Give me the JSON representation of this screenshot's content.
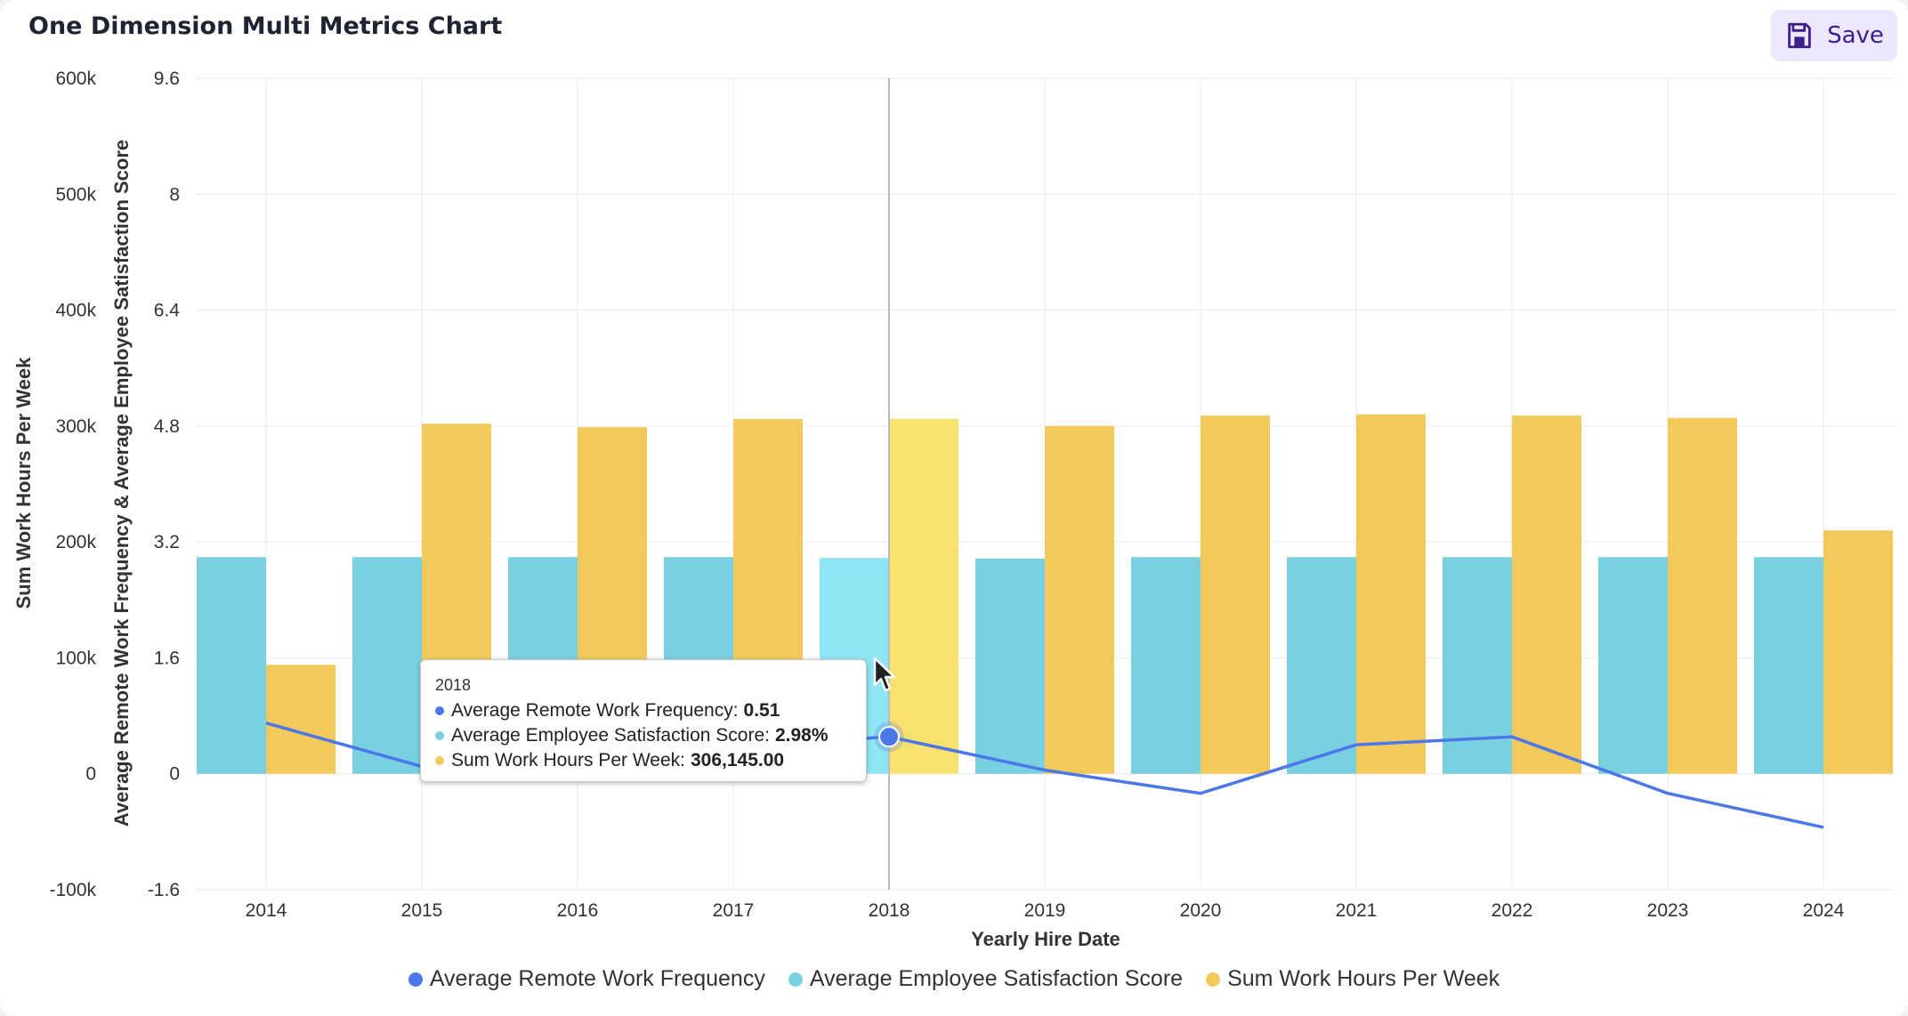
{
  "header": {
    "title": "One Dimension Multi Metrics Chart",
    "save_label": "Save"
  },
  "colors": {
    "remote": "#4b77e8",
    "satisfaction": "#79d0e0",
    "satisfaction_hover": "#8fe5f3",
    "hours": "#f2ca5c",
    "hours_hover": "#f8e16e"
  },
  "chart_data": {
    "type": "bar+line",
    "title": "One Dimension Multi Metrics Chart",
    "xlabel": "Yearly Hire Date",
    "ylabel_left_outer": "Sum Work Hours Per Week",
    "ylabel_left_inner": "Average Remote Work Frequency & Average Employee Satisfaction Score",
    "categories": [
      "2014",
      "2015",
      "2016",
      "2017",
      "2018",
      "2019",
      "2020",
      "2021",
      "2022",
      "2023",
      "2024"
    ],
    "hours_axis": {
      "ylim": [
        -100000,
        600000
      ],
      "ticks": [
        "-100k",
        "0",
        "100k",
        "200k",
        "300k",
        "400k",
        "500k",
        "600k"
      ]
    },
    "metric_axis": {
      "ylim": [
        -1.6,
        9.6
      ],
      "ticks": [
        "-1.6",
        "0",
        "1.6",
        "3.2",
        "4.8",
        "6.4",
        "8",
        "9.6"
      ]
    },
    "series": [
      {
        "name": "Average Remote Work Frequency",
        "type": "line",
        "axis": "metric",
        "values": [
          0.7,
          0.1,
          null,
          null,
          0.51,
          0.05,
          -0.27,
          0.4,
          0.51,
          -0.27,
          -0.74
        ]
      },
      {
        "name": "Average Employee Satisfaction Score",
        "type": "bar",
        "axis": "metric",
        "values": [
          2.99,
          2.99,
          2.99,
          2.99,
          2.98,
          2.97,
          2.99,
          2.99,
          2.99,
          2.99,
          2.99
        ]
      },
      {
        "name": "Sum Work Hours Per Week",
        "type": "bar",
        "axis": "hours",
        "values": [
          94000,
          302000,
          299000,
          306000,
          306145,
          300000,
          309000,
          310000,
          309000,
          307000,
          210000
        ]
      }
    ],
    "highlight_index": 4,
    "grid": true,
    "legend": "bottom-center"
  },
  "tooltip": {
    "title": "2018",
    "rows": [
      {
        "label": "Average Remote Work Frequency:",
        "value": "0.51"
      },
      {
        "label": "Average Employee Satisfaction Score:",
        "value": "2.98%"
      },
      {
        "label": "Sum Work Hours Per Week:",
        "value": "306,145.00"
      }
    ]
  },
  "legend": {
    "items": [
      "Average Remote Work Frequency",
      "Average Employee Satisfaction Score",
      "Sum Work Hours Per Week"
    ]
  }
}
